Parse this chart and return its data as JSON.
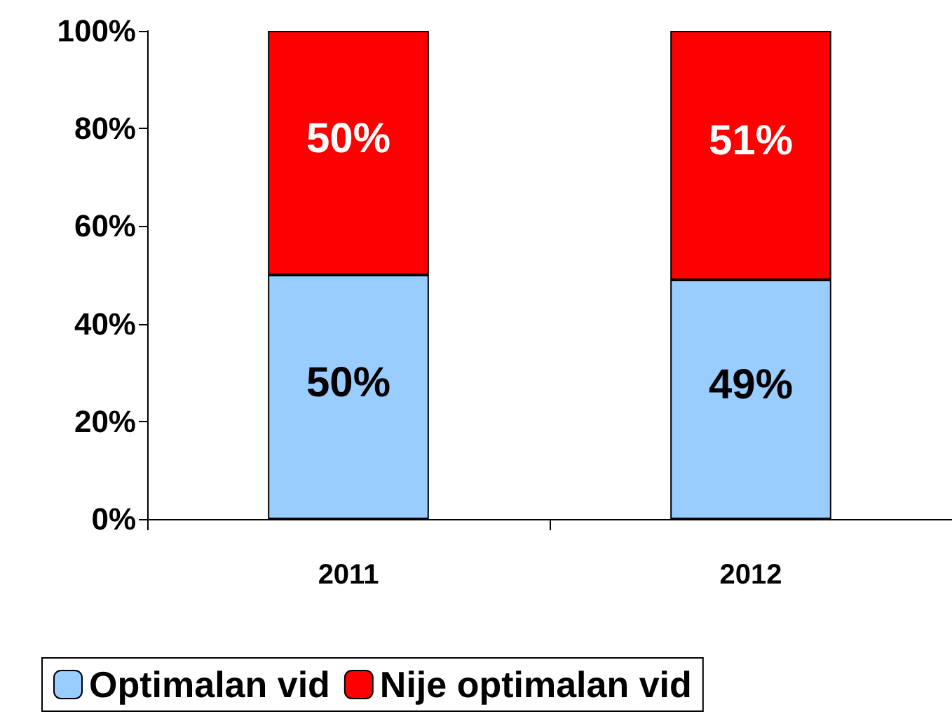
{
  "chart_data": {
    "type": "bar",
    "stacked": true,
    "categories": [
      "2011",
      "2012"
    ],
    "series": [
      {
        "name": "Optimalan vid",
        "color": "#99ccff",
        "values": [
          50,
          49
        ],
        "value_labels": [
          "50%",
          "49%"
        ]
      },
      {
        "name": "Nije optimalan vid",
        "color": "#ff0000",
        "values": [
          50,
          51
        ],
        "value_labels": [
          "50%",
          "51%"
        ]
      }
    ],
    "ylim": [
      0,
      100
    ],
    "yticks": [
      {
        "value": 0,
        "label": "0%"
      },
      {
        "value": 20,
        "label": "20%"
      },
      {
        "value": 40,
        "label": "40%"
      },
      {
        "value": 60,
        "label": "60%"
      },
      {
        "value": 80,
        "label": "80%"
      },
      {
        "value": 100,
        "label": "100%"
      }
    ],
    "grid": false,
    "legend": "bottom"
  }
}
